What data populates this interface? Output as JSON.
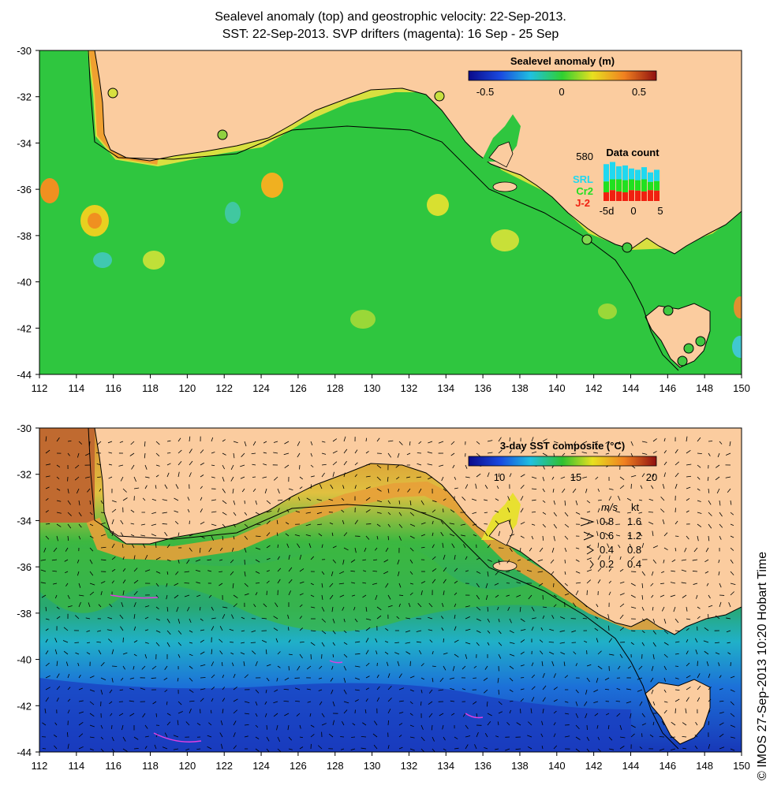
{
  "title_line1": "Sealevel anomaly (top) and geostrophic velocity: 22-Sep-2013.",
  "title_line2": "SST: 22-Sep-2013. SVP drifters (magenta): 16 Sep - 25 Sep",
  "credit": "© IMOS 27-Sep-2013 10:20 Hobart Time",
  "colors": {
    "land": "#fbcc9f",
    "ocean_sla": "#2fc63f",
    "ocean_sla_light": "#6bd84a",
    "sst_warm": "#f0a030",
    "sst_yellow": "#e8e030",
    "sst_green": "#30b840",
    "sst_cyan": "#20b8c8",
    "sst_blue": "#2050d0",
    "drifter": "#e040e0",
    "coast": "#000000"
  },
  "lon_ticks": [
    "112",
    "114",
    "116",
    "118",
    "120",
    "122",
    "124",
    "126",
    "128",
    "130",
    "132",
    "134",
    "136",
    "138",
    "140",
    "142",
    "144",
    "146",
    "148",
    "150"
  ],
  "lat_ticks": [
    "-30",
    "-32",
    "-34",
    "-36",
    "-38",
    "-40",
    "-42",
    "-44"
  ],
  "top_panel": {
    "colorbar_title": "Sealevel anomaly (m)",
    "colorbar_ticks": [
      "-0.5",
      "0",
      "0.5"
    ],
    "data_count": {
      "title": "Data count",
      "max_label": "580",
      "series": [
        {
          "name": "SRL",
          "color": "#20d8f0"
        },
        {
          "name": "Cr2",
          "color": "#20e020"
        },
        {
          "name": "J-2",
          "color": "#f02010"
        }
      ],
      "x_labels": [
        "-5d",
        "0",
        "5"
      ]
    }
  },
  "bottom_panel": {
    "colorbar_title": "3-day SST composite (°C)",
    "colorbar_ticks": [
      "10",
      "15",
      "20"
    ],
    "speed_legend": {
      "header_ms": "m/s",
      "header_kt": "kt",
      "rows": [
        {
          "ms": "0.8",
          "kt": "1.6"
        },
        {
          "ms": "0.6",
          "kt": "1.2"
        },
        {
          "ms": "0.4",
          "kt": "0.8"
        },
        {
          "ms": "0.2",
          "kt": "0.4"
        }
      ]
    }
  }
}
